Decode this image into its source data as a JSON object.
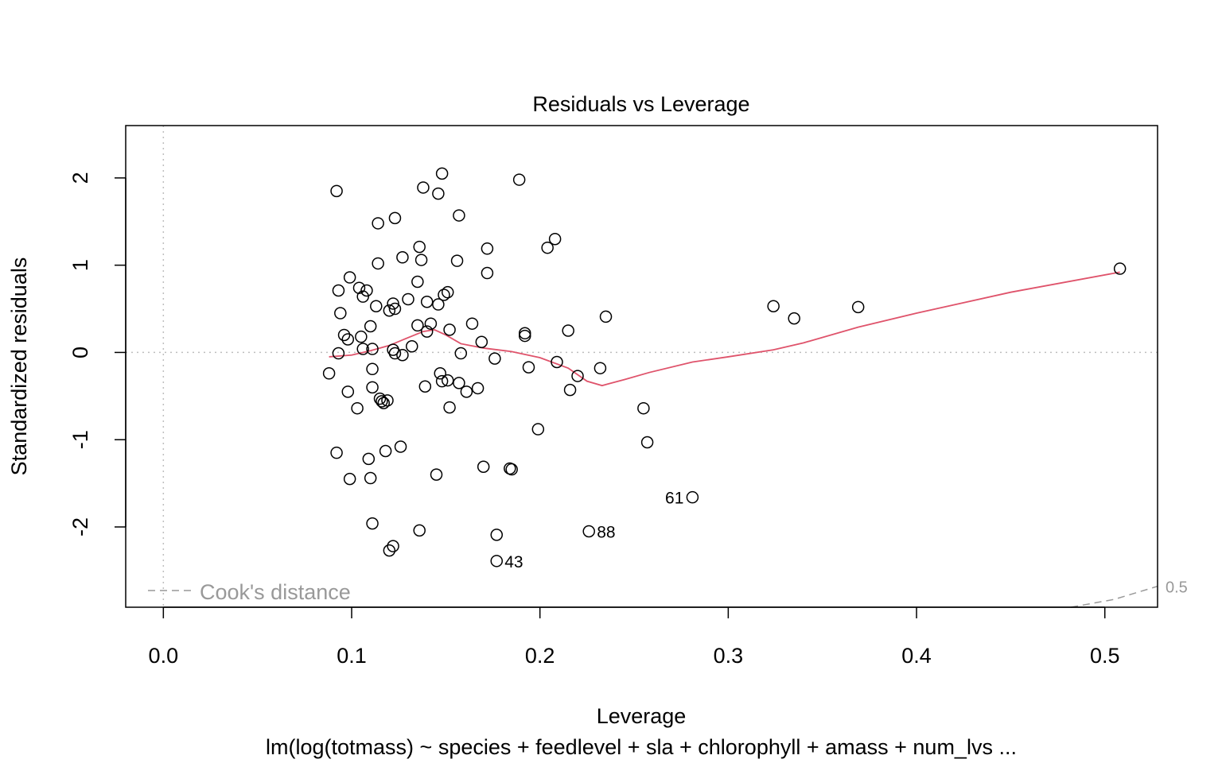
{
  "chart_data": {
    "type": "scatter",
    "title": "Residuals vs Leverage",
    "xlabel": "Leverage",
    "ylabel": "Standardized residuals",
    "subtitle": "lm(log(totmass) ~ species + feedlevel + sla + chlorophyll + amass + num_lvs ...",
    "xlim": [
      -0.02,
      0.528
    ],
    "ylim": [
      -2.92,
      2.6
    ],
    "x_ticks": [
      0.0,
      0.1,
      0.2,
      0.3,
      0.4,
      0.5
    ],
    "x_tick_labels": [
      "0.0",
      "0.1",
      "0.2",
      "0.3",
      "0.4",
      "0.5"
    ],
    "y_ticks": [
      -2,
      -1,
      0,
      1,
      2
    ],
    "y_tick_labels": [
      "-2",
      "-1",
      "0",
      "1",
      "2"
    ],
    "reference_lines": {
      "h": 0,
      "v": 0
    },
    "legend": {
      "label": "Cook's distance",
      "position": "bottom-left"
    },
    "cook_contour": {
      "level_label": "0.5",
      "points": [
        [
          0.482,
          -2.92
        ],
        [
          0.505,
          -2.83
        ],
        [
          0.528,
          -2.68
        ]
      ]
    },
    "colors": {
      "points": "#000000",
      "smooth": "#DF536B",
      "reference": "#BEBEBE",
      "cook": "#999999"
    },
    "points": [
      [
        0.148,
        2.05
      ],
      [
        0.189,
        1.98
      ],
      [
        0.092,
        1.85
      ],
      [
        0.138,
        1.89
      ],
      [
        0.146,
        1.82
      ],
      [
        0.157,
        1.57
      ],
      [
        0.123,
        1.54
      ],
      [
        0.114,
        1.48
      ],
      [
        0.208,
        1.3
      ],
      [
        0.204,
        1.2
      ],
      [
        0.136,
        1.21
      ],
      [
        0.172,
        1.19
      ],
      [
        0.127,
        1.09
      ],
      [
        0.137,
        1.06
      ],
      [
        0.114,
        1.02
      ],
      [
        0.156,
        1.05
      ],
      [
        0.172,
        0.91
      ],
      [
        0.099,
        0.86
      ],
      [
        0.135,
        0.81
      ],
      [
        0.104,
        0.74
      ],
      [
        0.093,
        0.71
      ],
      [
        0.108,
        0.71
      ],
      [
        0.151,
        0.69
      ],
      [
        0.149,
        0.66
      ],
      [
        0.106,
        0.64
      ],
      [
        0.13,
        0.61
      ],
      [
        0.14,
        0.58
      ],
      [
        0.122,
        0.56
      ],
      [
        0.146,
        0.55
      ],
      [
        0.113,
        0.53
      ],
      [
        0.12,
        0.48
      ],
      [
        0.123,
        0.5
      ],
      [
        0.094,
        0.45
      ],
      [
        0.235,
        0.41
      ],
      [
        0.324,
        0.53
      ],
      [
        0.335,
        0.39
      ],
      [
        0.369,
        0.52
      ],
      [
        0.164,
        0.33
      ],
      [
        0.142,
        0.33
      ],
      [
        0.135,
        0.31
      ],
      [
        0.11,
        0.3
      ],
      [
        0.152,
        0.26
      ],
      [
        0.215,
        0.25
      ],
      [
        0.14,
        0.24
      ],
      [
        0.192,
        0.22
      ],
      [
        0.192,
        0.19
      ],
      [
        0.096,
        0.2
      ],
      [
        0.098,
        0.15
      ],
      [
        0.105,
        0.18
      ],
      [
        0.169,
        0.12
      ],
      [
        0.132,
        0.07
      ],
      [
        0.106,
        0.04
      ],
      [
        0.111,
        0.04
      ],
      [
        0.122,
        0.03
      ],
      [
        0.123,
        -0.01
      ],
      [
        0.093,
        -0.01
      ],
      [
        0.158,
        -0.01
      ],
      [
        0.127,
        -0.03
      ],
      [
        0.176,
        -0.07
      ],
      [
        0.209,
        -0.11
      ],
      [
        0.194,
        -0.17
      ],
      [
        0.111,
        -0.19
      ],
      [
        0.232,
        -0.18
      ],
      [
        0.088,
        -0.24
      ],
      [
        0.147,
        -0.24
      ],
      [
        0.151,
        -0.32
      ],
      [
        0.22,
        -0.27
      ],
      [
        0.148,
        -0.33
      ],
      [
        0.157,
        -0.35
      ],
      [
        0.111,
        -0.4
      ],
      [
        0.139,
        -0.39
      ],
      [
        0.167,
        -0.41
      ],
      [
        0.161,
        -0.45
      ],
      [
        0.098,
        -0.45
      ],
      [
        0.216,
        -0.43
      ],
      [
        0.115,
        -0.53
      ],
      [
        0.119,
        -0.55
      ],
      [
        0.116,
        -0.56
      ],
      [
        0.117,
        -0.58
      ],
      [
        0.103,
        -0.64
      ],
      [
        0.152,
        -0.63
      ],
      [
        0.255,
        -0.64
      ],
      [
        0.199,
        -0.88
      ],
      [
        0.257,
        -1.03
      ],
      [
        0.126,
        -1.08
      ],
      [
        0.118,
        -1.13
      ],
      [
        0.092,
        -1.15
      ],
      [
        0.109,
        -1.22
      ],
      [
        0.17,
        -1.31
      ],
      [
        0.184,
        -1.33
      ],
      [
        0.185,
        -1.34
      ],
      [
        0.145,
        -1.4
      ],
      [
        0.099,
        -1.45
      ],
      [
        0.11,
        -1.44
      ],
      [
        0.281,
        -1.66
      ],
      [
        0.111,
        -1.96
      ],
      [
        0.136,
        -2.04
      ],
      [
        0.226,
        -2.05
      ],
      [
        0.177,
        -2.09
      ],
      [
        0.122,
        -2.22
      ],
      [
        0.12,
        -2.27
      ],
      [
        0.177,
        -2.39
      ],
      [
        0.508,
        0.96
      ]
    ],
    "labeled_points": [
      {
        "label": "61",
        "x": 0.281,
        "y": -1.66,
        "side": "left"
      },
      {
        "label": "88",
        "x": 0.226,
        "y": -2.05,
        "side": "right"
      },
      {
        "label": "43",
        "x": 0.177,
        "y": -2.39,
        "side": "right"
      }
    ],
    "smooth_line": [
      [
        0.088,
        -0.05
      ],
      [
        0.1,
        -0.03
      ],
      [
        0.11,
        0.02
      ],
      [
        0.12,
        0.08
      ],
      [
        0.13,
        0.17
      ],
      [
        0.138,
        0.24
      ],
      [
        0.144,
        0.26
      ],
      [
        0.15,
        0.2
      ],
      [
        0.158,
        0.1
      ],
      [
        0.17,
        0.05
      ],
      [
        0.185,
        0.01
      ],
      [
        0.2,
        -0.06
      ],
      [
        0.215,
        -0.18
      ],
      [
        0.225,
        -0.33
      ],
      [
        0.233,
        -0.38
      ],
      [
        0.245,
        -0.31
      ],
      [
        0.258,
        -0.23
      ],
      [
        0.281,
        -0.11
      ],
      [
        0.3,
        -0.05
      ],
      [
        0.324,
        0.03
      ],
      [
        0.34,
        0.11
      ],
      [
        0.369,
        0.29
      ],
      [
        0.4,
        0.45
      ],
      [
        0.45,
        0.69
      ],
      [
        0.508,
        0.92
      ]
    ]
  }
}
